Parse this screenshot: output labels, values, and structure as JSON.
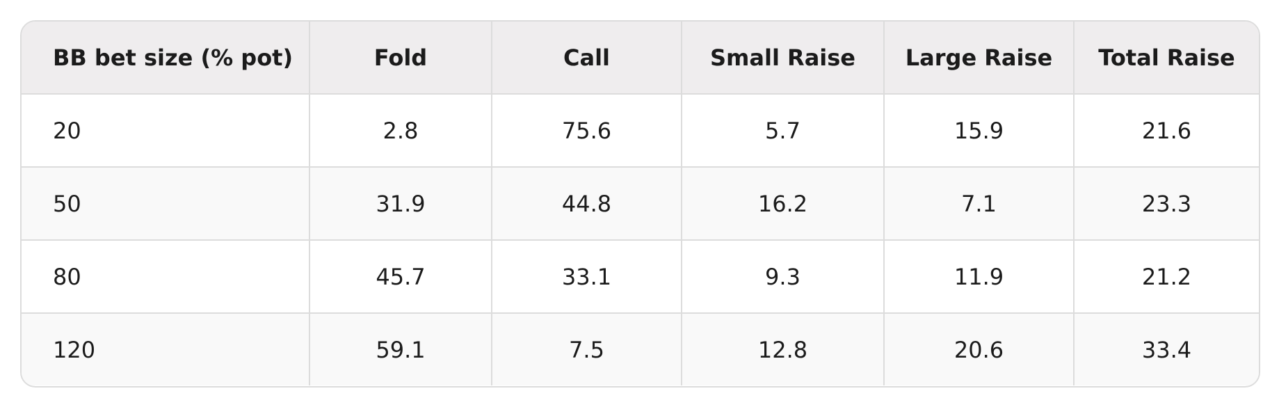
{
  "table": {
    "header": [
      "BB bet size (% pot)",
      "Fold",
      "Call",
      "Small Raise",
      "Large Raise",
      "Total Raise"
    ],
    "rows": [
      [
        "20",
        "2.8",
        "75.6",
        "5.7",
        "15.9",
        "21.6"
      ],
      [
        "50",
        "31.9",
        "44.8",
        "16.2",
        "7.1",
        "23.3"
      ],
      [
        "80",
        "45.7",
        "33.1",
        "9.3",
        "11.9",
        "21.2"
      ],
      [
        "120",
        "59.1",
        "7.5",
        "12.8",
        "20.6",
        "33.4"
      ]
    ]
  }
}
